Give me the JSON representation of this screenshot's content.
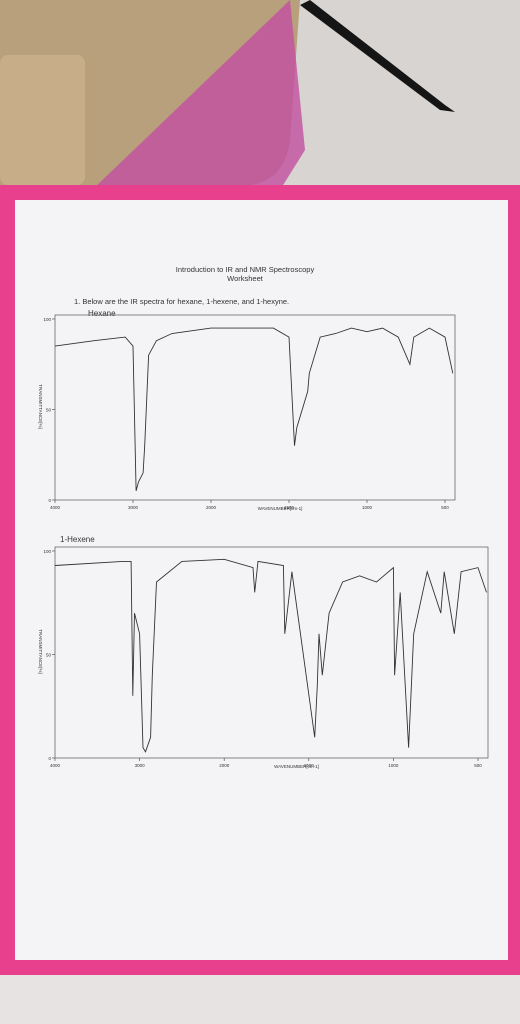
{
  "header": {
    "title": "Introduction to IR and NMR Spectroscopy",
    "subtitle": "Worksheet"
  },
  "question": "1.  Below are the IR spectra for hexane, 1-hexene, and 1-hexyne.",
  "chart_data": [
    {
      "type": "line",
      "title": "Hexane",
      "color": "#333333",
      "x": [
        4000,
        3500,
        3100,
        3000,
        2960,
        2930,
        2870,
        2850,
        2800,
        2700,
        2500,
        2000,
        1600,
        1500,
        1465,
        1450,
        1380,
        1370,
        1300,
        1200,
        1100,
        1000,
        900,
        800,
        725,
        700,
        600,
        500,
        450
      ],
      "values": [
        85,
        88,
        90,
        85,
        5,
        10,
        15,
        30,
        80,
        88,
        92,
        95,
        95,
        90,
        30,
        40,
        60,
        70,
        90,
        92,
        95,
        93,
        95,
        90,
        75,
        90,
        95,
        90,
        70
      ],
      "xlim": [
        4000,
        450
      ],
      "ylim": [
        0,
        100
      ],
      "xticks": [
        4000,
        3000,
        2000,
        1500,
        1000,
        500
      ],
      "yticks": [
        0,
        50,
        100
      ],
      "xlabel": "WAVENUMBER[cm-1]",
      "ylabel": "TRANSMITTANCE[%]"
    },
    {
      "type": "line",
      "title": "1-Hexene",
      "color": "#333333",
      "x": [
        4000,
        3200,
        3100,
        3080,
        3060,
        3000,
        2960,
        2930,
        2870,
        2850,
        2800,
        2500,
        2000,
        1830,
        1820,
        1800,
        1650,
        1642,
        1600,
        1465,
        1450,
        1440,
        1420,
        1380,
        1300,
        1200,
        1100,
        1000,
        993,
        960,
        910,
        880,
        800,
        720,
        700,
        640,
        600,
        500,
        450
      ],
      "values": [
        93,
        95,
        95,
        30,
        70,
        60,
        5,
        3,
        10,
        40,
        85,
        95,
        96,
        92,
        80,
        95,
        93,
        60,
        90,
        10,
        35,
        60,
        40,
        70,
        85,
        88,
        85,
        92,
        40,
        80,
        5,
        60,
        90,
        70,
        90,
        60,
        90,
        92,
        80
      ],
      "xlim": [
        4000,
        450
      ],
      "ylim": [
        0,
        100
      ],
      "xticks": [
        4000,
        3000,
        2000,
        1500,
        1000,
        500
      ],
      "yticks": [
        0,
        50,
        100
      ],
      "xlabel": "WAVENUMBER[cm-1]",
      "ylabel": "TRANSMITTANCE[%]"
    }
  ]
}
